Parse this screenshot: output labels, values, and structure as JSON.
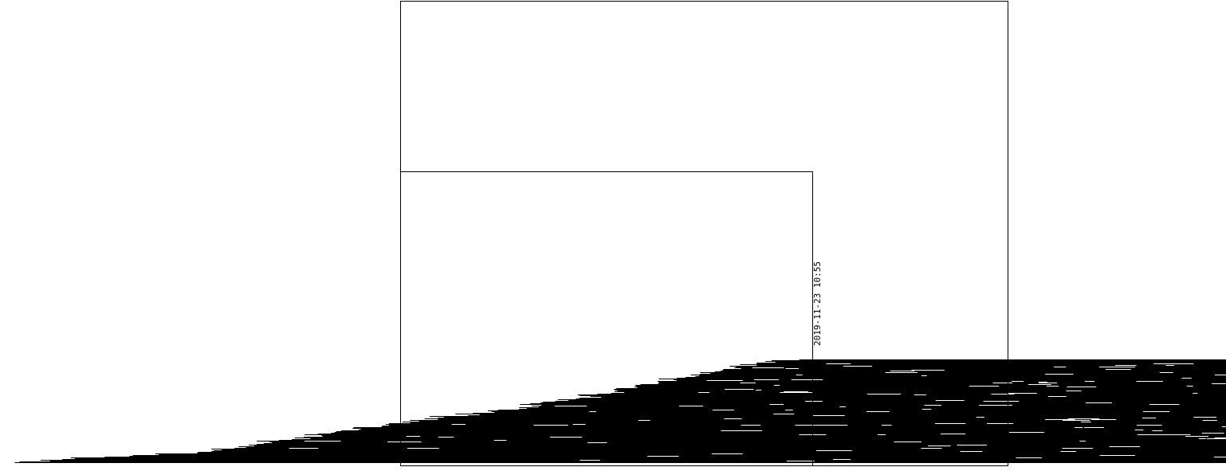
{
  "figure": {
    "timestamp_label": "2019-11-23 10:55",
    "ink_color": "#000000",
    "background_color": "#ffffff",
    "content": "dense horizontal line bundle (wedge) with two nested rectangular frames"
  }
}
